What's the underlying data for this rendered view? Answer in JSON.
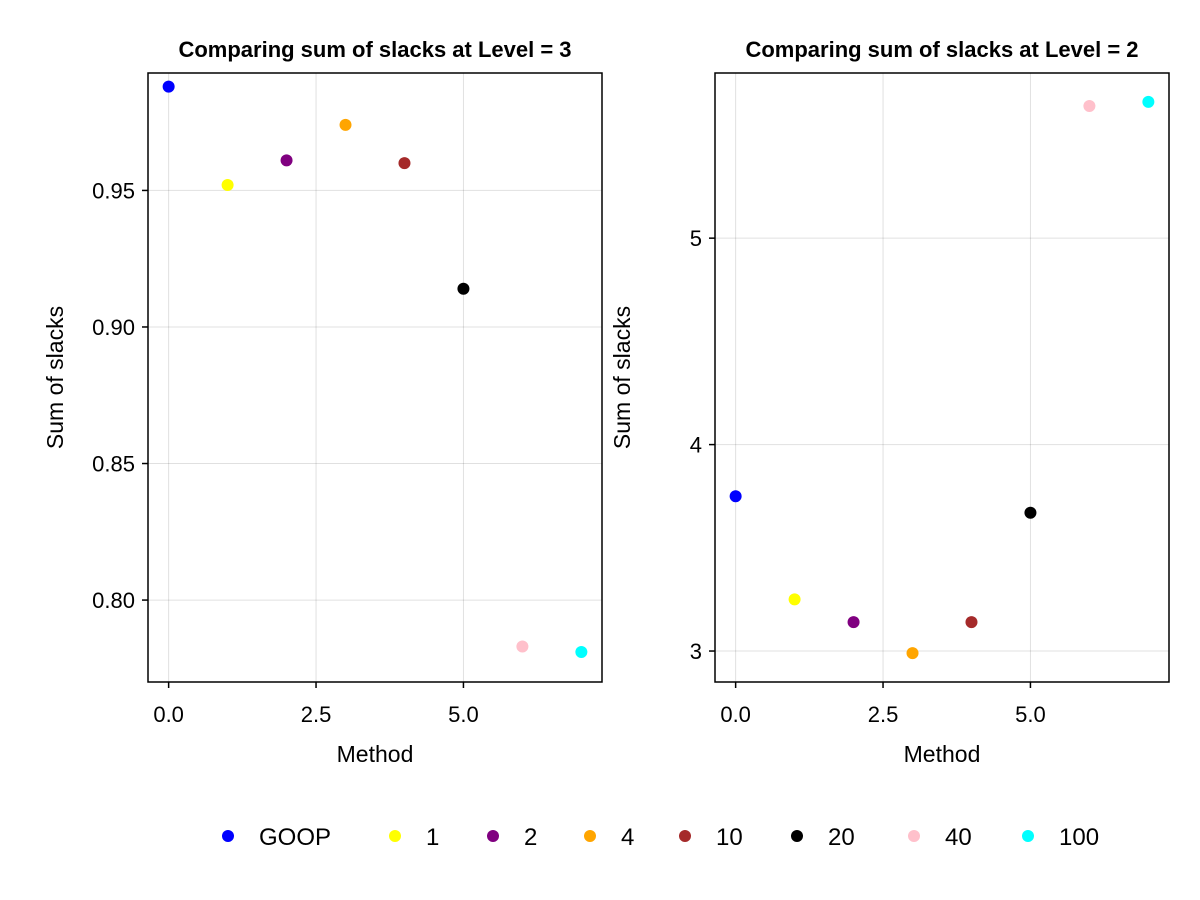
{
  "chart_data": [
    {
      "type": "scatter",
      "title": "Comparing sum of slacks at Level = 3",
      "xlabel": "Method",
      "ylabel": "Sum of slacks",
      "xlim": [
        -0.35,
        7.35
      ],
      "ylim": [
        0.77,
        0.993
      ],
      "xticks": [
        0,
        2.5,
        5
      ],
      "xtick_labels": [
        "0.0",
        "2.5",
        "5.0"
      ],
      "yticks": [
        0.8,
        0.85,
        0.9,
        0.95
      ],
      "ytick_labels": [
        "0.80",
        "0.85",
        "0.90",
        "0.95"
      ],
      "grid": true,
      "points": [
        {
          "x": 0,
          "y": 0.988,
          "series": "GOOP"
        },
        {
          "x": 1,
          "y": 0.952,
          "series": "1"
        },
        {
          "x": 2,
          "y": 0.961,
          "series": "2"
        },
        {
          "x": 3,
          "y": 0.974,
          "series": "4"
        },
        {
          "x": 4,
          "y": 0.96,
          "series": "10"
        },
        {
          "x": 5,
          "y": 0.914,
          "series": "20"
        },
        {
          "x": 6,
          "y": 0.783,
          "series": "40"
        },
        {
          "x": 7,
          "y": 0.781,
          "series": "100"
        }
      ]
    },
    {
      "type": "scatter",
      "title": "Comparing sum of slacks at Level = 2",
      "xlabel": "Method",
      "ylabel": "Sum of slacks",
      "xlim": [
        -0.35,
        7.35
      ],
      "ylim": [
        2.85,
        5.8
      ],
      "xticks": [
        0,
        2.5,
        5
      ],
      "xtick_labels": [
        "0.0",
        "2.5",
        "5.0"
      ],
      "yticks": [
        3,
        4,
        5
      ],
      "ytick_labels": [
        "3",
        "4",
        "5"
      ],
      "grid": true,
      "points": [
        {
          "x": 0,
          "y": 3.75,
          "series": "GOOP"
        },
        {
          "x": 1,
          "y": 3.25,
          "series": "1"
        },
        {
          "x": 2,
          "y": 3.14,
          "series": "2"
        },
        {
          "x": 3,
          "y": 2.99,
          "series": "4"
        },
        {
          "x": 4,
          "y": 3.14,
          "series": "10"
        },
        {
          "x": 5,
          "y": 3.67,
          "series": "20"
        },
        {
          "x": 6,
          "y": 5.64,
          "series": "40"
        },
        {
          "x": 7,
          "y": 5.66,
          "series": "100"
        }
      ]
    }
  ],
  "legend": {
    "placement": "bottom",
    "entries": [
      {
        "label": "GOOP",
        "color": "#0000ff"
      },
      {
        "label": "1",
        "color": "#ffff00"
      },
      {
        "label": "2",
        "color": "#800080"
      },
      {
        "label": "4",
        "color": "#ffa500"
      },
      {
        "label": "10",
        "color": "#a52a2a"
      },
      {
        "label": "20",
        "color": "#000000"
      },
      {
        "label": "40",
        "color": "#ffc0cb"
      },
      {
        "label": "100",
        "color": "#00ffff"
      }
    ]
  }
}
